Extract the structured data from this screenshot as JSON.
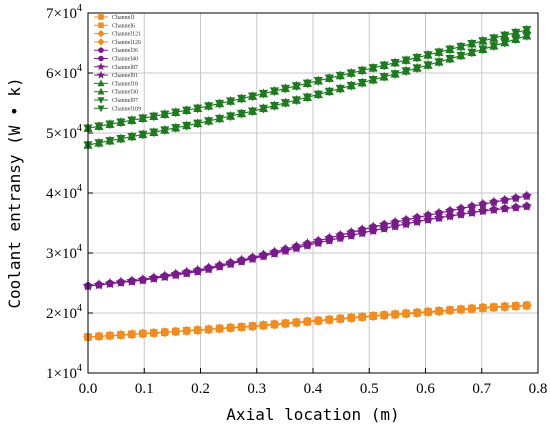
{
  "chart_data": {
    "type": "line",
    "xlabel": "Axial location (m)",
    "ylabel": "Coolant entransy (W • k)",
    "xlim": [
      0.0,
      0.8
    ],
    "ylim": [
      10000,
      70000
    ],
    "x_ticks": [
      "0.0",
      "0.1",
      "0.2",
      "0.3",
      "0.4",
      "0.5",
      "0.6",
      "0.7",
      "0.8"
    ],
    "y_ticks": [
      {
        "value": 10000,
        "mantissa": "1",
        "base": "×10",
        "exp": "4"
      },
      {
        "value": 20000,
        "mantissa": "2",
        "base": "×10",
        "exp": "4"
      },
      {
        "value": 30000,
        "mantissa": "3",
        "base": "×10",
        "exp": "4"
      },
      {
        "value": 40000,
        "mantissa": "4",
        "base": "×10",
        "exp": "4"
      },
      {
        "value": 50000,
        "mantissa": "5",
        "base": "×10",
        "exp": "4"
      },
      {
        "value": 60000,
        "mantissa": "6",
        "base": "×10",
        "exp": "4"
      },
      {
        "value": 70000,
        "mantissa": "7",
        "base": "×10",
        "exp": "4"
      }
    ],
    "grid": true,
    "legend_position": "top-left",
    "x": [
      0.0,
      0.1,
      0.2,
      0.3,
      0.4,
      0.5,
      0.6,
      0.7,
      0.78
    ],
    "series": [
      {
        "name": "Channel1",
        "color": "#f28c1e",
        "marker": "square",
        "values": [
          16000,
          16600,
          17200,
          17900,
          18700,
          19500,
          20200,
          20900,
          21300
        ]
      },
      {
        "name": "Channel6",
        "color": "#f28c1e",
        "marker": "square",
        "values": [
          16000,
          16550,
          17150,
          17800,
          18600,
          19400,
          20100,
          20800,
          21200
        ]
      },
      {
        "name": "Channel121",
        "color": "#f28c1e",
        "marker": "diamond",
        "values": [
          16000,
          16600,
          17200,
          17900,
          18700,
          19500,
          20200,
          20900,
          21300
        ]
      },
      {
        "name": "Channel126",
        "color": "#f28c1e",
        "marker": "diamond",
        "values": [
          16000,
          16550,
          17150,
          17800,
          18600,
          19400,
          20100,
          20800,
          21200
        ]
      },
      {
        "name": "Channel36",
        "color": "#7a1a8c",
        "marker": "circle",
        "values": [
          24500,
          25600,
          27200,
          29400,
          31800,
          34200,
          36200,
          38100,
          39500
        ]
      },
      {
        "name": "Channel40",
        "color": "#7a1a8c",
        "marker": "circle",
        "values": [
          24500,
          25500,
          27000,
          29200,
          31500,
          33600,
          35500,
          37000,
          37800
        ]
      },
      {
        "name": "Channel87",
        "color": "#7a1a8c",
        "marker": "star",
        "values": [
          24500,
          25600,
          27200,
          29400,
          31800,
          34200,
          36200,
          38100,
          39500
        ]
      },
      {
        "name": "Channel91",
        "color": "#7a1a8c",
        "marker": "star",
        "values": [
          24500,
          25500,
          27000,
          29200,
          31500,
          33600,
          35500,
          37000,
          37800
        ]
      },
      {
        "name": "Channel18",
        "color": "#1e7a1e",
        "marker": "triangle-up",
        "values": [
          50800,
          52500,
          54200,
          56300,
          58500,
          60700,
          62900,
          65300,
          67200
        ]
      },
      {
        "name": "Channel30",
        "color": "#1e7a1e",
        "marker": "triangle-up",
        "values": [
          48000,
          49800,
          51700,
          53800,
          56200,
          58700,
          61200,
          63900,
          66200
        ]
      },
      {
        "name": "Channel97",
        "color": "#1e7a1e",
        "marker": "triangle-down",
        "values": [
          50800,
          52500,
          54200,
          56300,
          58500,
          60700,
          62900,
          65300,
          67200
        ]
      },
      {
        "name": "Channel109",
        "color": "#1e7a1e",
        "marker": "triangle-down",
        "values": [
          48000,
          49800,
          51700,
          53800,
          56200,
          58700,
          61200,
          63900,
          66200
        ]
      }
    ]
  }
}
